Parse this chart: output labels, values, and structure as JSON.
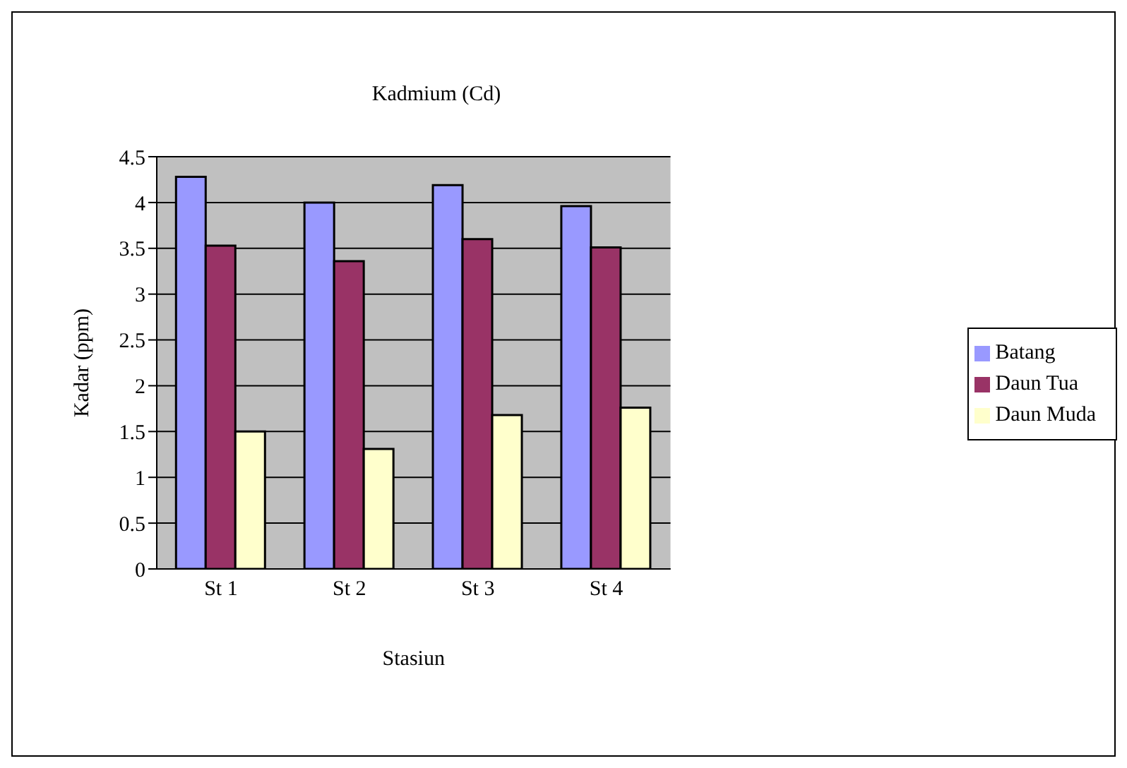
{
  "chart_data": {
    "type": "bar",
    "title": "Kadmium (Cd)",
    "xlabel": "Stasiun",
    "ylabel": "Kadar (ppm)",
    "categories": [
      "St 1",
      "St 2",
      "St 3",
      "St 4"
    ],
    "series": [
      {
        "name": "Batang",
        "color": "#9999ff",
        "values": [
          4.28,
          4.0,
          4.19,
          3.96
        ]
      },
      {
        "name": "Daun Tua",
        "color": "#993366",
        "values": [
          3.53,
          3.36,
          3.6,
          3.51
        ]
      },
      {
        "name": "Daun Muda",
        "color": "#ffffcc",
        "values": [
          1.5,
          1.31,
          1.68,
          1.76
        ]
      }
    ],
    "ylim": [
      0,
      4.5
    ],
    "yticks": [
      0,
      0.5,
      1,
      1.5,
      2,
      2.5,
      3,
      3.5,
      4,
      4.5
    ],
    "grid": "y",
    "legend": "right"
  }
}
